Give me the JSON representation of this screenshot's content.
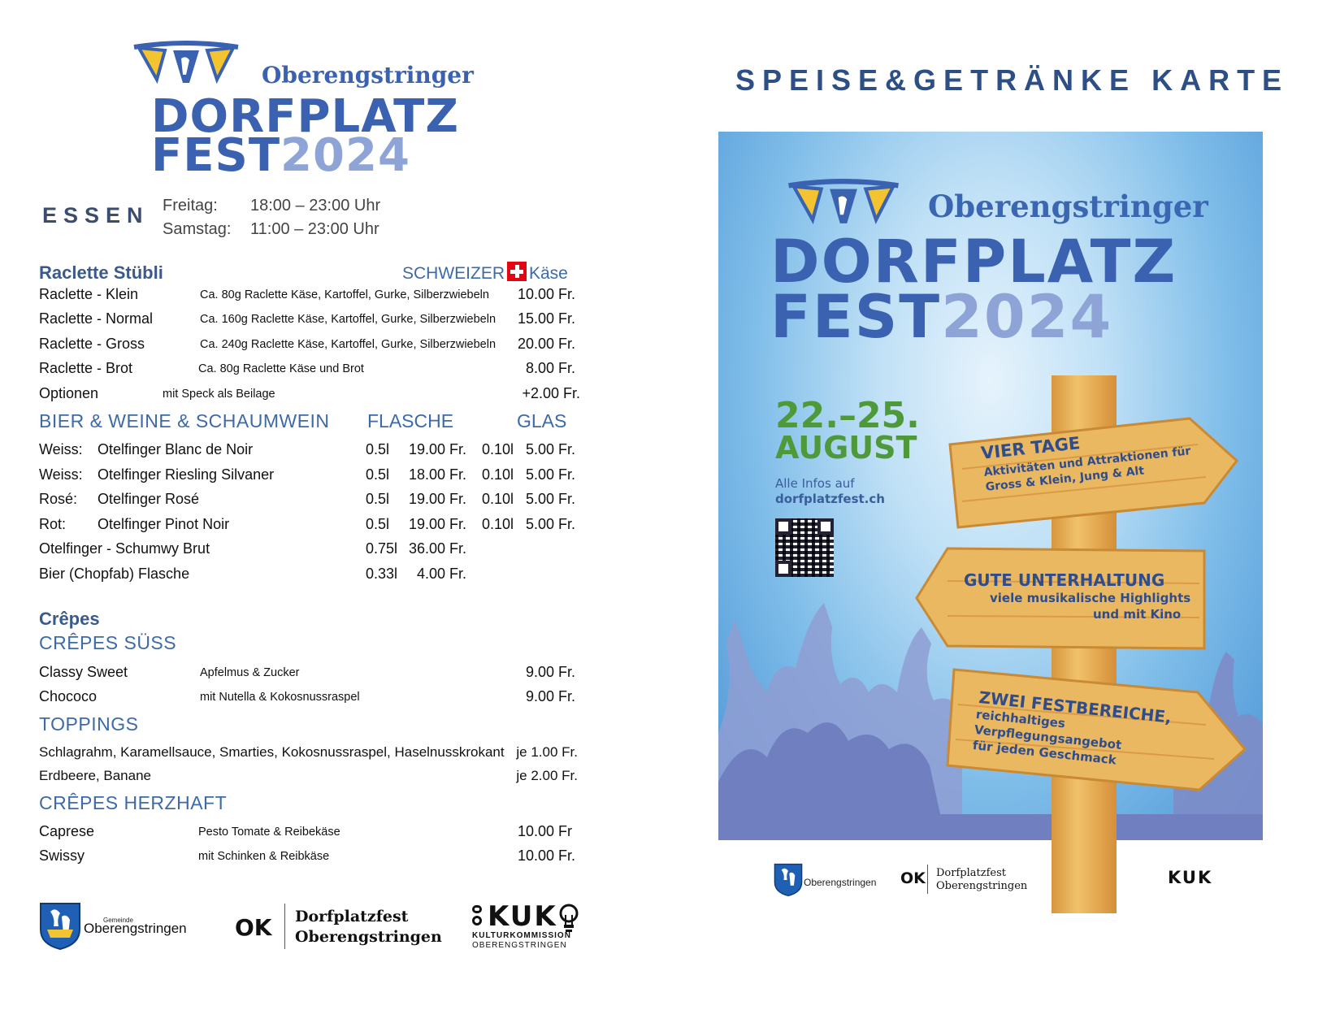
{
  "logo": {
    "subtitle": "Oberengstringer",
    "line1": "DORFPLATZ",
    "line2_word": "FEST",
    "line2_year": "2024"
  },
  "essen": {
    "title": "ESSEN",
    "hours": [
      {
        "day": "Freitag:",
        "time": "18:00 – 23:00 Uhr"
      },
      {
        "day": "Samstag:",
        "time": "11:00 – 23:00 Uhr"
      }
    ]
  },
  "raclette": {
    "title": "Raclette Stübli",
    "origin_pre": "SCHWEIZER",
    "origin_post": "Käse",
    "items": [
      {
        "name": "Raclette - Klein",
        "desc": "Ca. 80g Raclette Käse, Kartoffel, Gurke, Silberzwiebeln",
        "price": "10.00 Fr."
      },
      {
        "name": "Raclette - Normal",
        "desc": "Ca. 160g Raclette Käse, Kartoffel, Gurke, Silberzwiebeln",
        "price": "15.00 Fr."
      },
      {
        "name": "Raclette - Gross",
        "desc": "Ca. 240g Raclette Käse, Kartoffel, Gurke, Silberzwiebeln",
        "price": "20.00 Fr."
      },
      {
        "name": "Raclette - Brot",
        "desc": "Ca. 80g Raclette Käse und Brot",
        "price": "8.00 Fr."
      },
      {
        "name": "Optionen",
        "desc": "mit Speck als Beilage",
        "price": "+2.00 Fr."
      }
    ]
  },
  "drinks": {
    "title": "BIER & WEINE & SCHAUMWEIN",
    "col_bottle": "FLASCHE",
    "col_glass": "GLAS",
    "items": [
      {
        "type": "Weiss:",
        "name": "Otelfinger Blanc de Noir",
        "b_vol": "0.5l",
        "b_price": "19.00 Fr.",
        "g_vol": "0.10l",
        "g_price": "5.00 Fr."
      },
      {
        "type": "Weiss:",
        "name": "Otelfinger Riesling Silvaner",
        "b_vol": "0.5l",
        "b_price": "18.00 Fr.",
        "g_vol": "0.10l",
        "g_price": "5.00 Fr."
      },
      {
        "type": "Rosé:",
        "name": "Otelfinger Rosé",
        "b_vol": "0.5l",
        "b_price": "19.00 Fr.",
        "g_vol": "0.10l",
        "g_price": "5.00 Fr."
      },
      {
        "type": "Rot:",
        "name": "Otelfinger Pinot Noir",
        "b_vol": "0.5l",
        "b_price": "19.00 Fr.",
        "g_vol": "0.10l",
        "g_price": "5.00 Fr."
      },
      {
        "type": "",
        "name": "Otelfinger - Schumwy Brut",
        "b_vol": "0.75l",
        "b_price": "36.00 Fr.",
        "g_vol": "",
        "g_price": ""
      },
      {
        "type": "",
        "name": "Bier (Chopfab) Flasche",
        "b_vol": "0.33l",
        "b_price": "4.00 Fr.",
        "g_vol": "",
        "g_price": ""
      }
    ]
  },
  "crepes": {
    "title": "Crêpes",
    "sweet_title": "CRÊPES SÜSS",
    "sweet": [
      {
        "name": "Classy Sweet",
        "desc": "Apfelmus & Zucker",
        "price": "9.00 Fr."
      },
      {
        "name": "Chococo",
        "desc": "mit Nutella & Kokosnussraspel",
        "price": "9.00 Fr."
      }
    ],
    "toppings_title": "TOPPINGS",
    "toppings": [
      {
        "name": "Schlagrahm, Karamellsauce, Smarties, Kokosnussraspel, Haselnusskrokant",
        "price": "je 1.00 Fr."
      },
      {
        "name": "Erdbeere, Banane",
        "price": "je 2.00 Fr."
      }
    ],
    "savory_title": "CRÊPES HERZHAFT",
    "savory": [
      {
        "name": "Caprese",
        "desc": "Pesto Tomate & Reibekäse",
        "price": "10.00 Fr"
      },
      {
        "name": "Swissy",
        "desc": "mit Schinken & Reibkäse",
        "price": "10.00 Fr."
      }
    ]
  },
  "footer": {
    "gemeinde_small": "Gemeinde",
    "gemeinde": "Oberengstringen",
    "ok": "OK",
    "dpf_line1": "Dorfplatzfest",
    "dpf_line2": "Oberengstringen",
    "kuk": "KUK",
    "kuk_line1": "KULTURKOMMISSION",
    "kuk_line2": "OBERENGSTRINGEN"
  },
  "karte_title": "SPEISE&GETRÄNKE KARTE",
  "poster": {
    "subtitle": "Oberengstringer",
    "line1": "DORFPLATZ",
    "line2_word": "FEST",
    "line2_year": "2024",
    "date_line1": "22.–25.",
    "date_line2": "AUGUST",
    "info_line1": "Alle Infos auf",
    "info_line2": "dorfplatzfest.ch",
    "sign1_title": "VIER TAGE",
    "sign1_line1": "Aktivitäten und Attraktionen für",
    "sign1_line2": "Gross & Klein, Jung & Alt",
    "sign2_title": "GUTE UNTERHALTUNG",
    "sign2_line1": "viele musikalische Highlights",
    "sign2_line2": "und mit Kino",
    "sign3_title": "ZWEI FESTBEREICHE,",
    "sign3_line1": "reichhaltiges",
    "sign3_line2": "Verpflegungsangebot",
    "sign3_line3": "für jeden Geschmack",
    "colors": {
      "sky": "#5aa0dc",
      "brand": "#3a62b0",
      "date_green": "#4e9a3a",
      "wood": "#e8b560",
      "crowd": "#6f7fc0"
    }
  }
}
